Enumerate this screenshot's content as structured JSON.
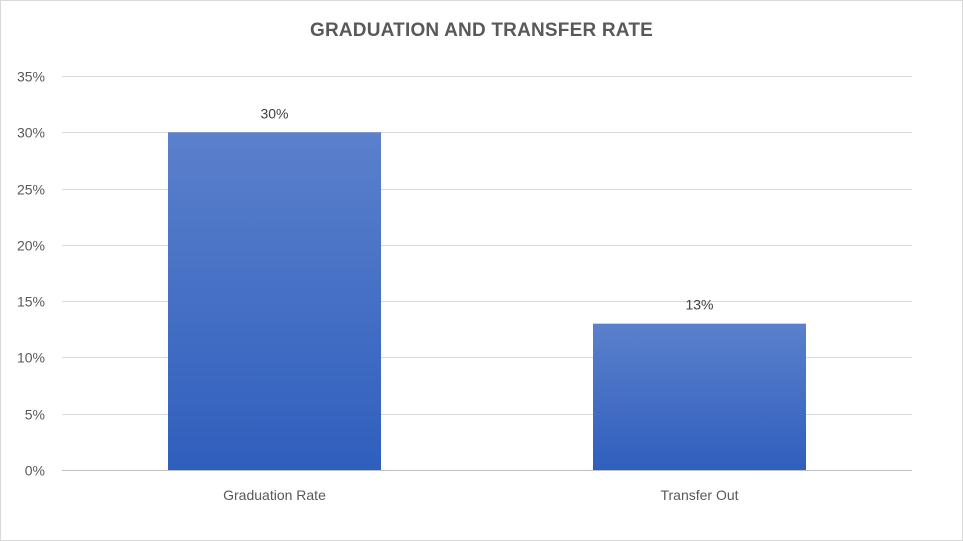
{
  "chart_data": {
    "type": "bar",
    "title": "GRADUATION AND TRANSFER RATE",
    "categories": [
      "Graduation Rate",
      "Transfer Out"
    ],
    "values": [
      30,
      13
    ],
    "data_labels": [
      "30%",
      "13%"
    ],
    "ylim": [
      0,
      35
    ],
    "yticks": [
      0,
      5,
      10,
      15,
      20,
      25,
      30,
      35
    ],
    "ytick_labels": [
      "0%",
      "5%",
      "10%",
      "15%",
      "20%",
      "25%",
      "30%",
      "35%"
    ],
    "grid": true,
    "legend": "none",
    "colors": {
      "bar_top": "#5b80cc",
      "bar_bottom": "#2f5fbd",
      "grid": "#d9d9d9",
      "axis": "#bfbfbf"
    }
  }
}
